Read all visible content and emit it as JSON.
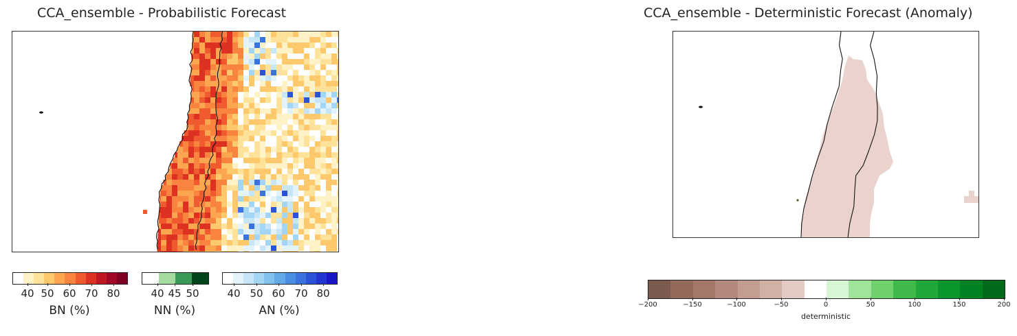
{
  "left_panel": {
    "title": "CCA_ensemble - Probabilistic Forecast",
    "colorbars": [
      {
        "label": "BN (%)",
        "ticks": [
          "40",
          "50",
          "60",
          "70",
          "80"
        ],
        "colors": [
          "#ffffff",
          "#fff2c6",
          "#fee29a",
          "#fdc96c",
          "#fca650",
          "#f9843f",
          "#ef5a2e",
          "#dd3121",
          "#c01724",
          "#a00726",
          "#7e0022"
        ]
      },
      {
        "label": "NN (%)",
        "ticks": [
          "40",
          "45",
          "50"
        ],
        "colors": [
          "#ffffff",
          "#a6dba0",
          "#3b9a57",
          "#00441b"
        ]
      },
      {
        "label": "AN (%)",
        "ticks": [
          "40",
          "50",
          "60",
          "70",
          "80"
        ],
        "colors": [
          "#ffffff",
          "#e3f3fc",
          "#c6e6f8",
          "#a4d5f4",
          "#84c2ee",
          "#63a9e8",
          "#4a8ee4",
          "#3a72de",
          "#2c52d8",
          "#2335cf",
          "#1a16c6"
        ]
      }
    ],
    "colors": {
      "bn_dominant": "#ef5a2e",
      "an_dominant": "#84c2ee",
      "low_probability": "#fee29a",
      "coastline": "#111111"
    }
  },
  "right_panel": {
    "title": "CCA_ensemble - Deterministic Forecast (Anomaly)",
    "colorbar": {
      "label": "deterministic",
      "ticks": [
        "−200",
        "−150",
        "−100",
        "−50",
        "0",
        "50",
        "100",
        "150",
        "200"
      ],
      "colors": [
        "#7d5a4f",
        "#95685c",
        "#a5776b",
        "#b4887c",
        "#c39d91",
        "#d1b0a6",
        "#e3cbc4",
        "#ffffff",
        "#d8f5d5",
        "#a0e49a",
        "#6fd16e",
        "#3fb949",
        "#20a83a",
        "#0b962d",
        "#018223",
        "#006a1a"
      ]
    },
    "colors": {
      "anomaly_fill": "#ead3cd",
      "coastline": "#111111"
    }
  }
}
